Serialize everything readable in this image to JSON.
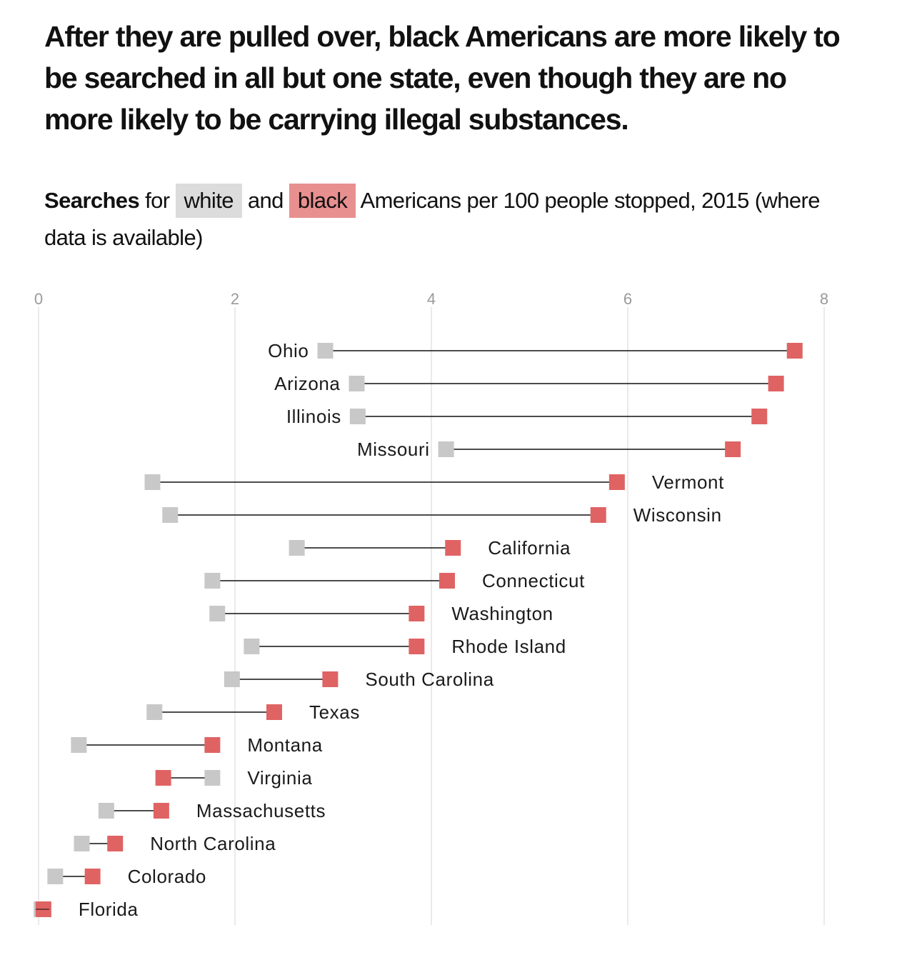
{
  "headline": "After they are pulled over, black Americans are more likely to be searched in all but one state, even though they are no more likely to be carrying illegal substances.",
  "subtitle": {
    "bold_word": "Searches",
    "text_for": " for ",
    "white_chip": "white",
    "text_and": " and ",
    "black_chip": "black",
    "text_rest": " Americans per 100 people stopped, 2015 (where data is available)"
  },
  "colors": {
    "white": "#c8c8c8",
    "black": "#e06363",
    "white_chip_bg": "#dcdcdc",
    "black_chip_bg": "#e88f8f",
    "line": "#111111",
    "grid": "#e3e3e3",
    "axis_text": "#9a9a9a"
  },
  "chart_data": {
    "type": "dumbbell",
    "x_ticks": [
      "0",
      "2",
      "4",
      "6",
      "8"
    ],
    "x_tick_values": [
      0,
      2,
      4,
      6,
      8
    ],
    "xlim": [
      0,
      8
    ],
    "grid": true,
    "series_names": [
      "white",
      "black"
    ],
    "rows": [
      {
        "state": "Ohio",
        "white": 2.92,
        "black": 7.7,
        "label_side": "left"
      },
      {
        "state": "Arizona",
        "white": 3.24,
        "black": 7.51,
        "label_side": "left"
      },
      {
        "state": "Illinois",
        "white": 3.25,
        "black": 7.34,
        "label_side": "left"
      },
      {
        "state": "Missouri",
        "white": 4.15,
        "black": 7.07,
        "label_side": "left"
      },
      {
        "state": "Vermont",
        "white": 1.16,
        "black": 5.89,
        "label_side": "right"
      },
      {
        "state": "Wisconsin",
        "white": 1.34,
        "black": 5.7,
        "label_side": "right"
      },
      {
        "state": "California",
        "white": 2.63,
        "black": 4.22,
        "label_side": "right"
      },
      {
        "state": "Connecticut",
        "white": 1.77,
        "black": 4.16,
        "label_side": "right"
      },
      {
        "state": "Washington",
        "white": 1.82,
        "black": 3.85,
        "label_side": "right"
      },
      {
        "state": "Rhode Island",
        "white": 2.17,
        "black": 3.85,
        "label_side": "right"
      },
      {
        "state": "South Carolina",
        "white": 1.97,
        "black": 2.97,
        "label_side": "right"
      },
      {
        "state": "Texas",
        "white": 1.18,
        "black": 2.4,
        "label_side": "right"
      },
      {
        "state": "Montana",
        "white": 0.41,
        "black": 1.77,
        "label_side": "right"
      },
      {
        "state": "Virginia",
        "white": 1.77,
        "black": 1.27,
        "label_side": "right"
      },
      {
        "state": "Massachusetts",
        "white": 0.69,
        "black": 1.25,
        "label_side": "right"
      },
      {
        "state": "North Carolina",
        "white": 0.44,
        "black": 0.78,
        "label_side": "right"
      },
      {
        "state": "Colorado",
        "white": 0.17,
        "black": 0.55,
        "label_side": "right"
      },
      {
        "state": "Florida",
        "white": 0.03,
        "black": 0.05,
        "label_side": "right"
      }
    ]
  }
}
